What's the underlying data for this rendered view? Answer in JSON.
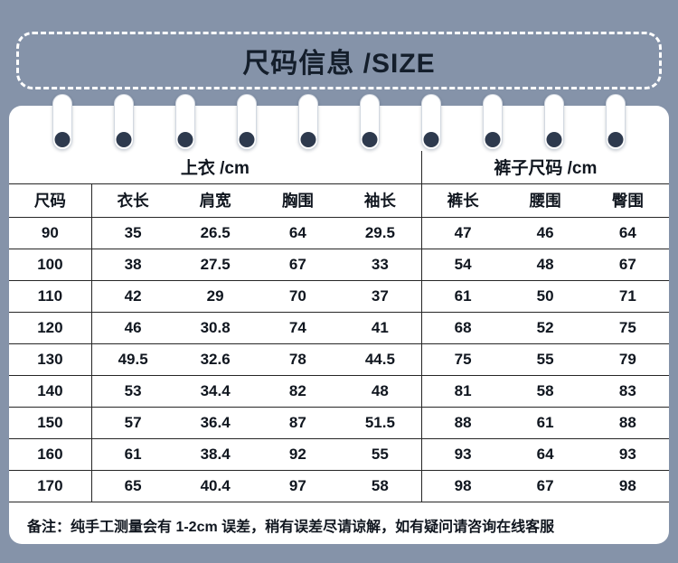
{
  "title": "尺码信息 /SIZE",
  "chart_data": {
    "type": "table",
    "title": "尺码信息 /SIZE",
    "column_groups": [
      {
        "label": "上衣 /cm",
        "span": 5
      },
      {
        "label": "裤子尺码 /cm",
        "span": 3
      }
    ],
    "columns": [
      "尺码",
      "衣长",
      "肩宽",
      "胸围",
      "袖长",
      "裤长",
      "腰围",
      "臀围"
    ],
    "rows": [
      [
        "90",
        "35",
        "26.5",
        "64",
        "29.5",
        "47",
        "46",
        "64"
      ],
      [
        "100",
        "38",
        "27.5",
        "67",
        "33",
        "54",
        "48",
        "67"
      ],
      [
        "110",
        "42",
        "29",
        "70",
        "37",
        "61",
        "50",
        "71"
      ],
      [
        "120",
        "46",
        "30.8",
        "74",
        "41",
        "68",
        "52",
        "75"
      ],
      [
        "130",
        "49.5",
        "32.6",
        "78",
        "44.5",
        "75",
        "55",
        "79"
      ],
      [
        "140",
        "53",
        "34.4",
        "82",
        "48",
        "81",
        "58",
        "83"
      ],
      [
        "150",
        "57",
        "36.4",
        "87",
        "51.5",
        "88",
        "61",
        "88"
      ],
      [
        "160",
        "61",
        "38.4",
        "92",
        "55",
        "93",
        "64",
        "93"
      ],
      [
        "170",
        "65",
        "40.4",
        "97",
        "58",
        "98",
        "67",
        "98"
      ]
    ]
  },
  "note": "备注：纯手工测量会有 1-2cm 误差，稍有误差尽请谅解，如有疑问请咨询在线客服",
  "ring_count": 10,
  "colors": {
    "background": "#8593a9",
    "card": "#ffffff",
    "text": "#10161f",
    "title_border": "#ffffff",
    "table_line": "#262626",
    "ring_hole": "#2e3a4e"
  }
}
